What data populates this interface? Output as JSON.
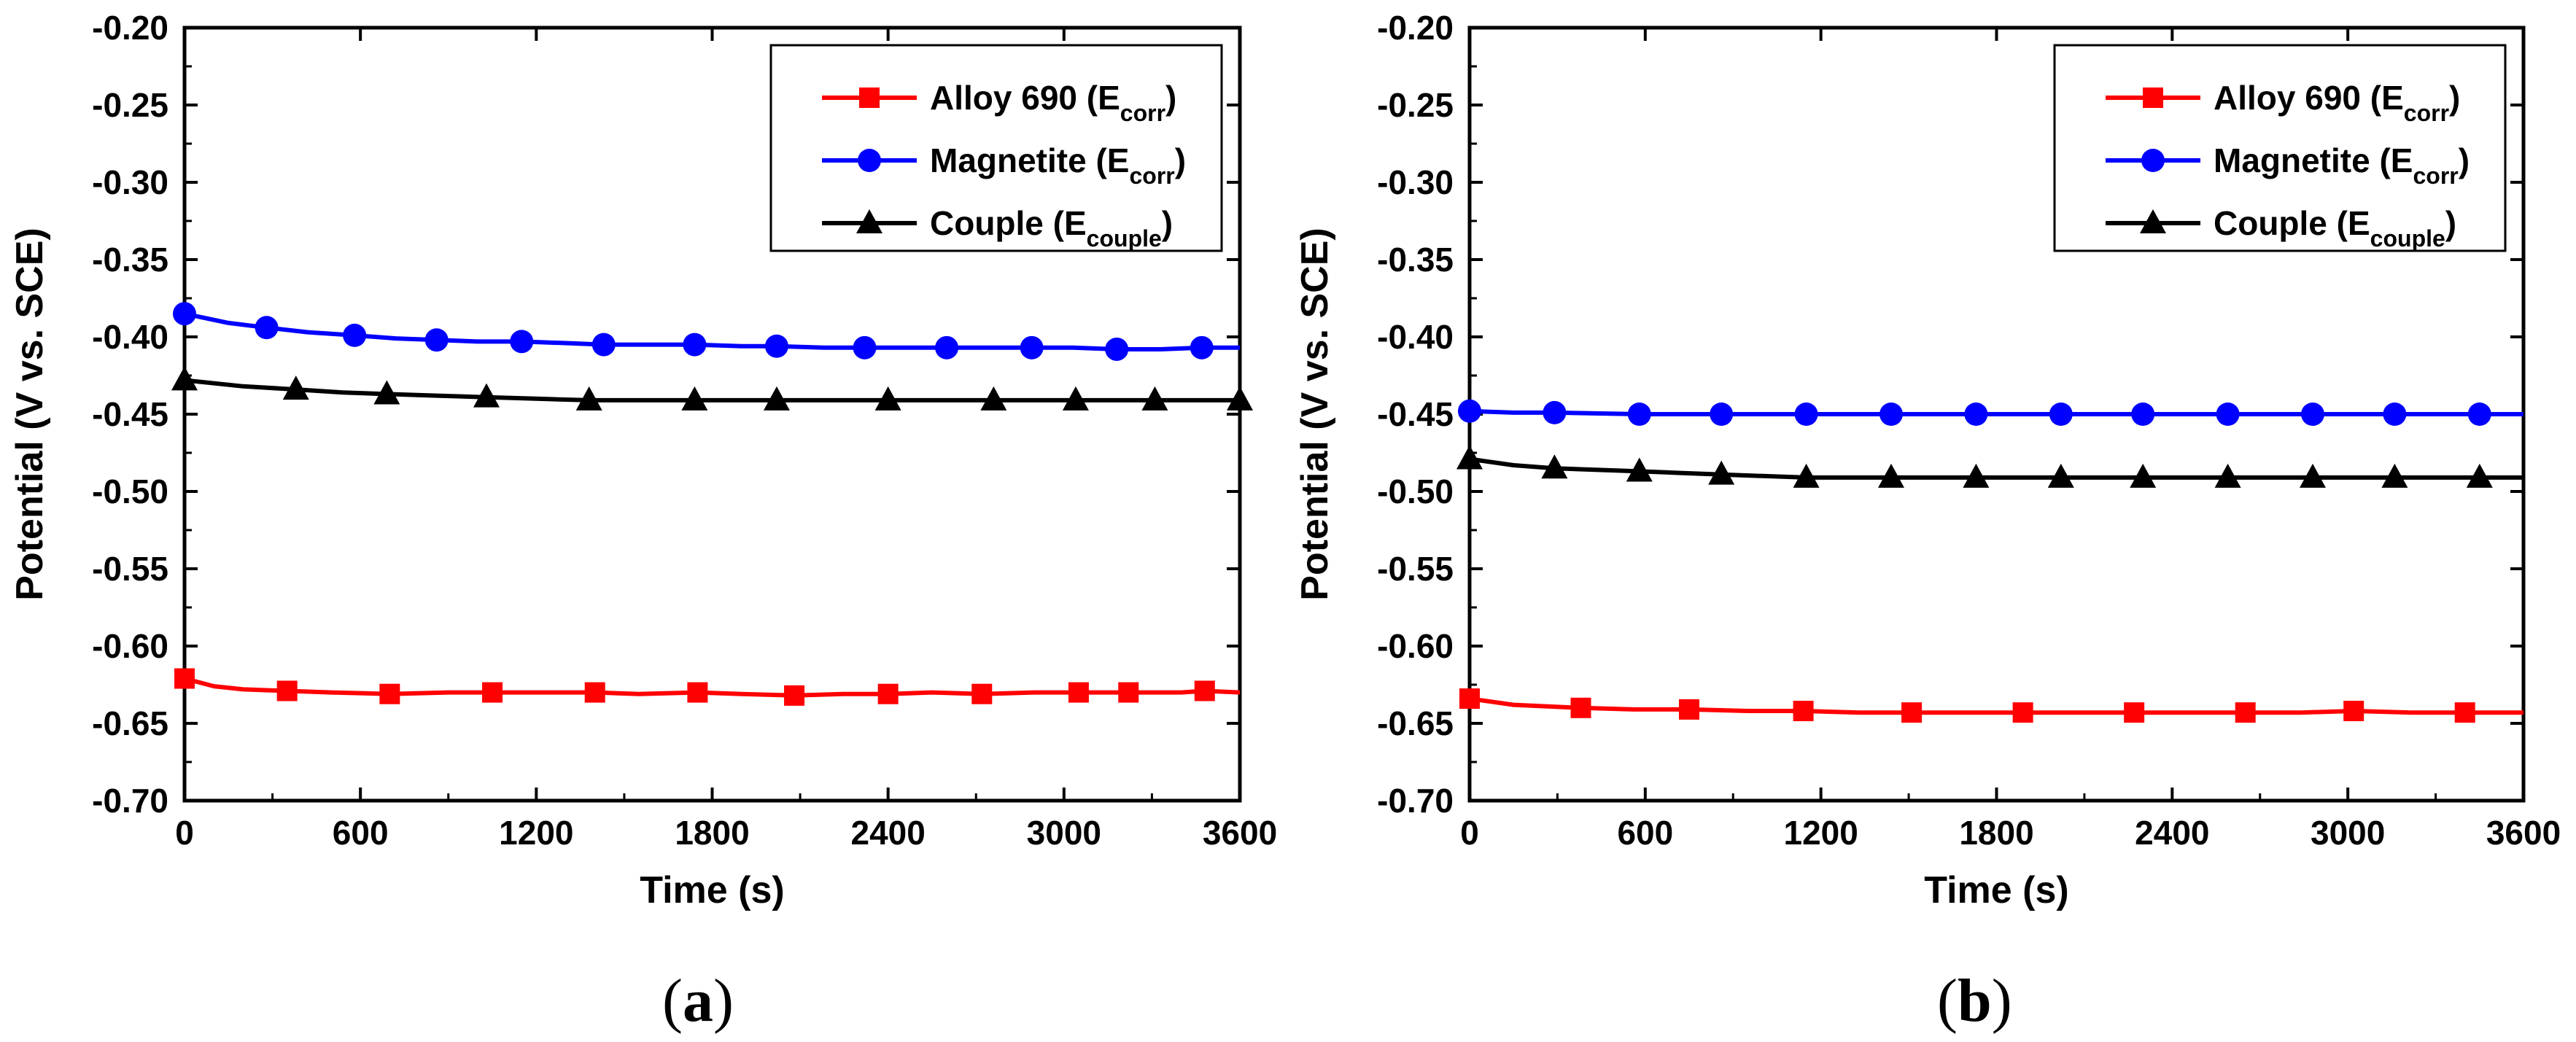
{
  "chart_data": [
    {
      "type": "line",
      "panel_label": "a",
      "xlabel": "Time (s)",
      "ylabel": "Potential (V vs. SCE)",
      "xlim": [
        0,
        3600
      ],
      "ylim": [
        -0.7,
        -0.2
      ],
      "x_ticks": [
        0,
        600,
        1200,
        1800,
        2400,
        3000,
        3600
      ],
      "x_tick_labels": [
        "0",
        "600",
        "1200",
        "1800",
        "2400",
        "3000",
        "3600"
      ],
      "y_ticks": [
        -0.7,
        -0.65,
        -0.6,
        -0.55,
        -0.5,
        -0.45,
        -0.4,
        -0.35,
        -0.3,
        -0.25,
        -0.2
      ],
      "y_tick_labels": [
        "-0.70",
        "-0.65",
        "-0.60",
        "-0.55",
        "-0.50",
        "-0.45",
        "-0.40",
        "-0.35",
        "-0.30",
        "-0.25",
        "-0.20"
      ],
      "legend_position": "top-right",
      "series": [
        {
          "name": "Alloy 690 (Ecorr)",
          "label_main": "Alloy 690 (E",
          "label_sub": "corr",
          "label_end": ")",
          "color": "#ff0000",
          "marker": "square",
          "x": [
            0,
            100,
            200,
            350,
            500,
            700,
            900,
            1050,
            1200,
            1400,
            1550,
            1750,
            1900,
            2080,
            2250,
            2400,
            2550,
            2720,
            2900,
            3050,
            3220,
            3400,
            3480,
            3600
          ],
          "y": [
            -0.621,
            -0.626,
            -0.628,
            -0.629,
            -0.63,
            -0.631,
            -0.63,
            -0.63,
            -0.63,
            -0.63,
            -0.631,
            -0.63,
            -0.631,
            -0.632,
            -0.631,
            -0.631,
            -0.63,
            -0.631,
            -0.63,
            -0.63,
            -0.63,
            -0.63,
            -0.629,
            -0.63
          ]
        },
        {
          "name": "Magnetite (Ecorr)",
          "label_main": "Magnetite (E",
          "label_sub": "corr",
          "label_end": ")",
          "color": "#0000ff",
          "marker": "circle",
          "x": [
            0,
            150,
            280,
            420,
            580,
            720,
            860,
            1000,
            1150,
            1300,
            1430,
            1600,
            1740,
            1900,
            2020,
            2180,
            2320,
            2460,
            2600,
            2750,
            2890,
            3030,
            3180,
            3330,
            3470,
            3600
          ],
          "y": [
            -0.385,
            -0.391,
            -0.394,
            -0.397,
            -0.399,
            -0.401,
            -0.402,
            -0.403,
            -0.403,
            -0.404,
            -0.405,
            -0.405,
            -0.405,
            -0.406,
            -0.406,
            -0.407,
            -0.407,
            -0.407,
            -0.407,
            -0.407,
            -0.407,
            -0.407,
            -0.408,
            -0.408,
            -0.407,
            -0.407
          ]
        },
        {
          "name": "Couple (Ecouple)",
          "label_main": "Couple (E",
          "label_sub": "couple",
          "label_end": ")",
          "color": "#000000",
          "marker": "triangle",
          "x": [
            0,
            200,
            380,
            540,
            690,
            860,
            1030,
            1200,
            1380,
            1560,
            1740,
            1900,
            2020,
            2200,
            2400,
            2580,
            2760,
            2900,
            3040,
            3200,
            3310,
            3450,
            3600
          ],
          "y": [
            -0.428,
            -0.432,
            -0.434,
            -0.436,
            -0.437,
            -0.438,
            -0.439,
            -0.44,
            -0.441,
            -0.441,
            -0.441,
            -0.441,
            -0.441,
            -0.441,
            -0.441,
            -0.441,
            -0.441,
            -0.441,
            -0.441,
            -0.441,
            -0.441,
            -0.441,
            -0.441
          ]
        }
      ],
      "marker_x": {
        "Alloy 690 (Ecorr)": [
          0,
          350,
          700,
          1050,
          1400,
          1750,
          2080,
          2400,
          2720,
          3050,
          3220,
          3480
        ],
        "Magnetite (Ecorr)": [
          0,
          280,
          580,
          860,
          1150,
          1430,
          1740,
          2020,
          2320,
          2600,
          2890,
          3180,
          3470
        ],
        "Couple (Ecouple)": [
          0,
          380,
          690,
          1030,
          1380,
          1740,
          2020,
          2400,
          2760,
          3040,
          3310,
          3600
        ]
      }
    },
    {
      "type": "line",
      "panel_label": "b",
      "xlabel": "Time (s)",
      "ylabel": "Potential (V vs. SCE)",
      "xlim": [
        0,
        3600
      ],
      "ylim": [
        -0.7,
        -0.2
      ],
      "x_ticks": [
        0,
        600,
        1200,
        1800,
        2400,
        3000,
        3600
      ],
      "x_tick_labels": [
        "0",
        "600",
        "1200",
        "1800",
        "2400",
        "3000",
        "3600"
      ],
      "y_ticks": [
        -0.7,
        -0.65,
        -0.6,
        -0.55,
        -0.5,
        -0.45,
        -0.4,
        -0.35,
        -0.3,
        -0.25,
        -0.2
      ],
      "y_tick_labels": [
        "-0.70",
        "-0.65",
        "-0.60",
        "-0.55",
        "-0.50",
        "-0.45",
        "-0.40",
        "-0.35",
        "-0.30",
        "-0.25",
        "-0.20"
      ],
      "legend_position": "top-right",
      "series": [
        {
          "name": "Alloy 690 (Ecorr)",
          "label_main": "Alloy 690 (E",
          "label_sub": "corr",
          "label_end": ")",
          "color": "#ff0000",
          "marker": "square",
          "x": [
            0,
            150,
            380,
            560,
            750,
            950,
            1140,
            1330,
            1510,
            1700,
            1890,
            2080,
            2270,
            2460,
            2650,
            2840,
            3020,
            3210,
            3400,
            3600
          ],
          "y": [
            -0.634,
            -0.638,
            -0.64,
            -0.641,
            -0.641,
            -0.642,
            -0.642,
            -0.643,
            -0.643,
            -0.643,
            -0.643,
            -0.643,
            -0.643,
            -0.643,
            -0.643,
            -0.643,
            -0.642,
            -0.643,
            -0.643,
            -0.643
          ]
        },
        {
          "name": "Magnetite (Ecorr)",
          "label_main": "Magnetite (E",
          "label_sub": "corr",
          "label_end": ")",
          "color": "#0000ff",
          "marker": "circle",
          "x": [
            0,
            150,
            290,
            580,
            860,
            1150,
            1440,
            1730,
            2020,
            2300,
            2590,
            2880,
            3160,
            3450,
            3600
          ],
          "y": [
            -0.448,
            -0.449,
            -0.449,
            -0.45,
            -0.45,
            -0.45,
            -0.45,
            -0.45,
            -0.45,
            -0.45,
            -0.45,
            -0.45,
            -0.45,
            -0.45,
            -0.45
          ]
        },
        {
          "name": "Couple (Ecouple)",
          "label_main": "Couple (E",
          "label_sub": "couple",
          "label_end": ")",
          "color": "#000000",
          "marker": "triangle",
          "x": [
            0,
            150,
            290,
            430,
            580,
            720,
            860,
            1000,
            1150,
            1300,
            1440,
            1730,
            2020,
            2300,
            2590,
            2880,
            3160,
            3450,
            3600
          ],
          "y": [
            -0.479,
            -0.483,
            -0.485,
            -0.486,
            -0.487,
            -0.488,
            -0.489,
            -0.49,
            -0.491,
            -0.491,
            -0.491,
            -0.491,
            -0.491,
            -0.491,
            -0.491,
            -0.491,
            -0.491,
            -0.491,
            -0.491
          ]
        }
      ],
      "marker_x": {
        "Alloy 690 (Ecorr)": [
          0,
          380,
          750,
          1140,
          1510,
          1890,
          2270,
          2650,
          3020,
          3400
        ],
        "Magnetite (Ecorr)": [
          0,
          290,
          580,
          860,
          1150,
          1440,
          1730,
          2020,
          2300,
          2590,
          2880,
          3160,
          3450
        ],
        "Couple (Ecouple)": [
          0,
          290,
          580,
          860,
          1150,
          1440,
          1730,
          2020,
          2300,
          2590,
          2880,
          3160,
          3450
        ]
      }
    }
  ]
}
